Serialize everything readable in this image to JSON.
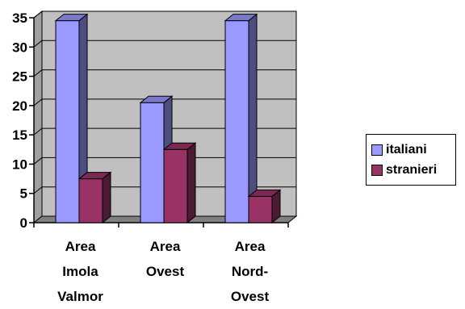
{
  "chart_data": {
    "type": "bar",
    "categories": [
      [
        "Area",
        "Imola",
        "Valmor"
      ],
      [
        "Area",
        "Ovest"
      ],
      [
        "Area",
        "Nord-",
        "Ovest"
      ]
    ],
    "series": [
      {
        "name": "italiani",
        "values": [
          34.5,
          20.5,
          34.5
        ],
        "color": "#9999ff"
      },
      {
        "name": "stranieri",
        "values": [
          7.5,
          12.5,
          4.5
        ],
        "color": "#993366"
      }
    ],
    "yticks": [
      0,
      5,
      10,
      15,
      20,
      25,
      30,
      35
    ],
    "ylim": [
      0,
      35
    ],
    "grid": true,
    "legend_position": "right",
    "plot_background": "#c0c0c0"
  }
}
